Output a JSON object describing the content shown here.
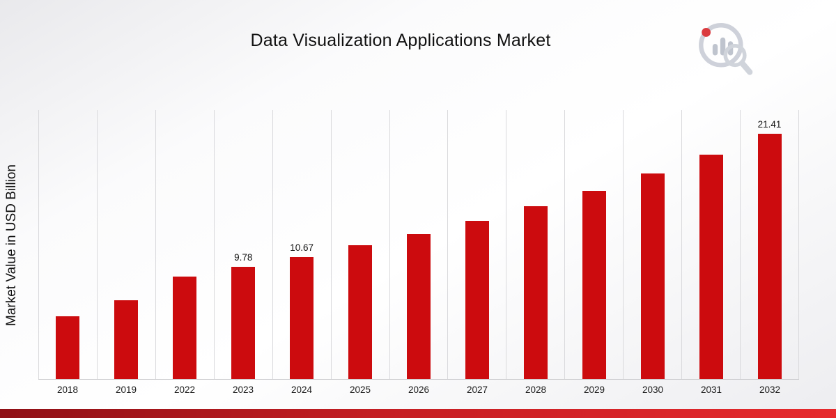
{
  "title": "Data Visualization Applications Market",
  "ylabel": "Market Value in USD Billion",
  "logo_name": "market-research-future-logo",
  "chart_data": {
    "type": "bar",
    "title": "Data Visualization Applications Market",
    "xlabel": "",
    "ylabel": "Market Value in USD Billion",
    "categories": [
      "2018",
      "2019",
      "2022",
      "2023",
      "2024",
      "2025",
      "2026",
      "2027",
      "2028",
      "2029",
      "2030",
      "2031",
      "2032"
    ],
    "values": [
      5.5,
      6.9,
      8.95,
      9.78,
      10.67,
      11.7,
      12.65,
      13.85,
      15.1,
      16.45,
      17.95,
      19.6,
      21.41
    ],
    "data_labels": {
      "2023": "9.78",
      "2024": "10.67",
      "2032": "21.41"
    },
    "bar_color": "#cc0b0e",
    "ylim": [
      0,
      23.5
    ],
    "grid": "vertical-only",
    "legend": "none"
  }
}
